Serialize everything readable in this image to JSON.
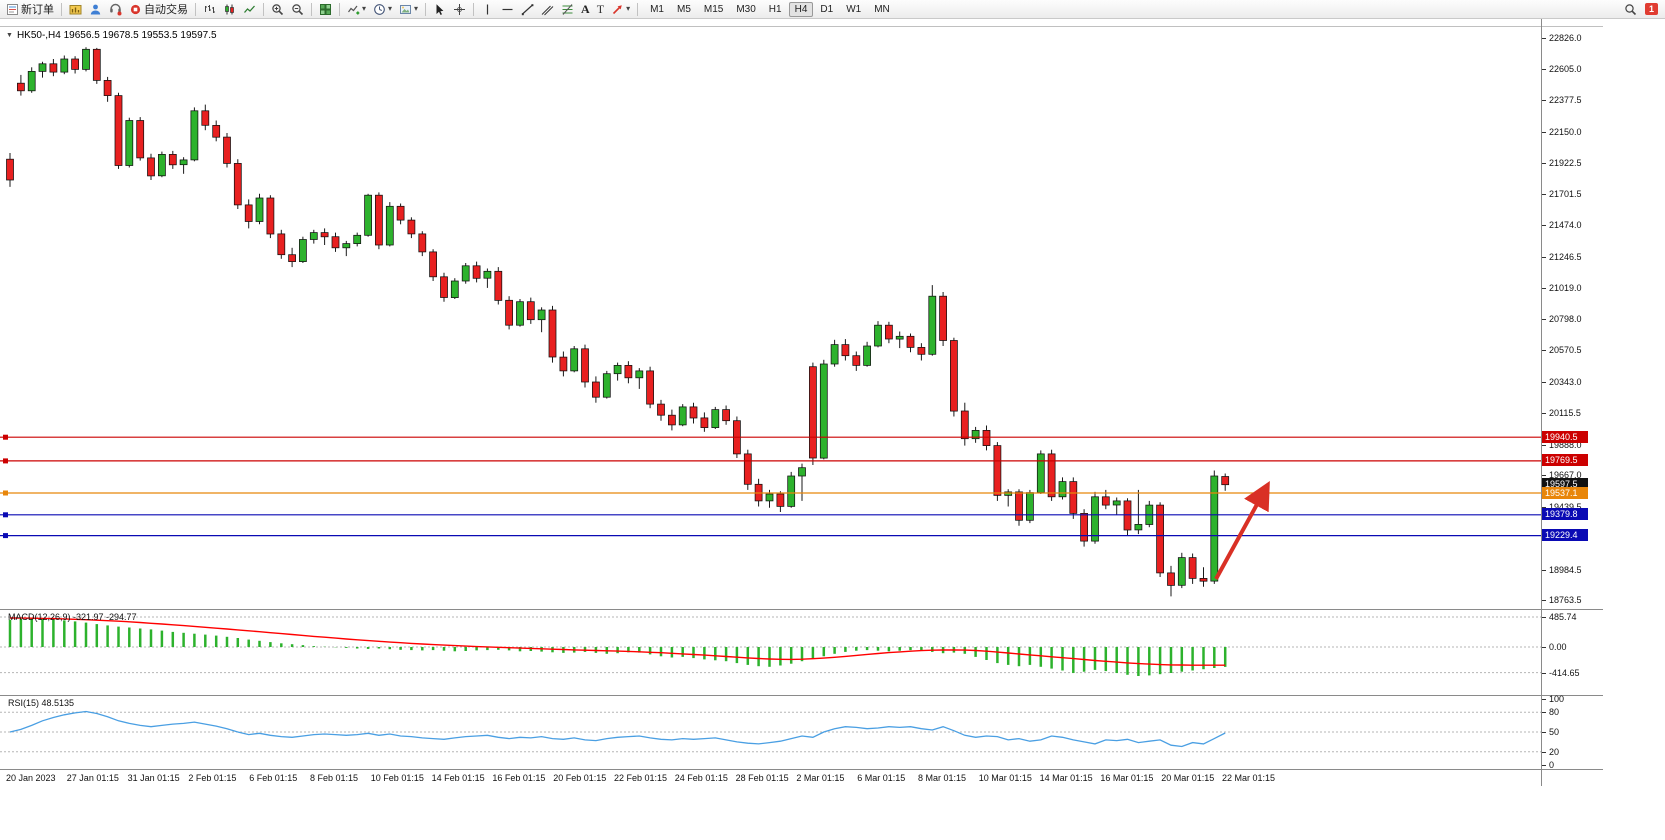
{
  "colors": {
    "bull": "#2db22d",
    "bear": "#e82020",
    "wick": "#1a1a1a",
    "macd_hist": "#2db22d",
    "macd_signal": "#ff0000",
    "rsi_line": "#4a9fe3",
    "line_red": "#cc0000",
    "line_orange": "#e8860a",
    "line_blue": "#0a0ab4",
    "tag_black": "#111111",
    "arrow": "#d93025"
  },
  "icons": {
    "collapse": "▼",
    "caret": "▾"
  },
  "toolbar": {
    "new_order": "新订单",
    "autotrading": "自动交易",
    "text_tool": "A",
    "label_tool": "T",
    "timeframes": [
      "M1",
      "M5",
      "M15",
      "M30",
      "H1",
      "H4",
      "D1",
      "W1",
      "MN"
    ],
    "active_timeframe": "H4",
    "badge_count": "1"
  },
  "chart": {
    "title": "HK50-,H4 19656.5 19678.5 19553.5 19597.5",
    "axis_prices": [
      22826.0,
      22605.0,
      22377.5,
      22150.0,
      21922.5,
      21701.5,
      21474.0,
      21246.5,
      21019.0,
      20798.0,
      20570.5,
      20343.0,
      20115.5,
      19888.0,
      19667.0,
      19439.5,
      19212.0,
      18984.5,
      18763.5
    ],
    "hlines": [
      {
        "value": 19940.5,
        "color": "#cc0000"
      },
      {
        "value": 19769.5,
        "color": "#cc0000"
      },
      {
        "value": 19537.1,
        "color": "#e8860a"
      },
      {
        "value": 19379.8,
        "color": "#0a0ab4"
      },
      {
        "value": 19229.4,
        "color": "#0a0ab4"
      }
    ],
    "price_tags": [
      {
        "text": "19940.5",
        "value": 19940.5,
        "bg": "#cc0000"
      },
      {
        "text": "19769.5",
        "value": 19769.5,
        "bg": "#cc0000"
      },
      {
        "text": "19597.5",
        "value": 19597.5,
        "bg": "#111111"
      },
      {
        "text": "19537.1",
        "value": 19537.1,
        "bg": "#e8860a"
      },
      {
        "text": "19379.8",
        "value": 19379.8,
        "bg": "#0a0ab4"
      },
      {
        "text": "19229.4",
        "value": 19229.4,
        "bg": "#0a0ab4"
      }
    ],
    "time_labels": [
      "20 Jan 2023",
      "27 Jan 01:15",
      "31 Jan 01:15",
      "2 Feb 01:15",
      "6 Feb 01:15",
      "8 Feb 01:15",
      "10 Feb 01:15",
      "14 Feb 01:15",
      "16 Feb 01:15",
      "20 Feb 01:15",
      "22 Feb 01:15",
      "24 Feb 01:15",
      "28 Feb 01:15",
      "2 Mar 01:15",
      "6 Mar 01:15",
      "8 Mar 01:15",
      "10 Mar 01:15",
      "14 Mar 01:15",
      "16 Mar 01:15",
      "20 Mar 01:15",
      "22 Mar 01:15"
    ]
  },
  "macd": {
    "label": "MACD(12,26,9) -321.97 -294.77",
    "axis": [
      {
        "text": "485.74",
        "value": 485.74
      },
      {
        "text": "0.00",
        "value": 0
      },
      {
        "text": "-414.65",
        "value": -414.65
      }
    ]
  },
  "rsi": {
    "label": "RSI(15) 48.5135",
    "axis": [
      {
        "text": "100",
        "value": 100
      },
      {
        "text": "80",
        "value": 80
      },
      {
        "text": "50",
        "value": 50
      },
      {
        "text": "20",
        "value": 20
      },
      {
        "text": "0",
        "value": 0
      }
    ],
    "levels": [
      80,
      50,
      20
    ]
  },
  "annotations": [
    {
      "type": "arrow-up",
      "color": "#d93025"
    }
  ],
  "chart_data": {
    "type": "candlestick",
    "symbol": "HK50-",
    "timeframe": "H4",
    "current_ohlc": {
      "open": 19656.5,
      "high": 19678.5,
      "low": 19553.5,
      "close": 19597.5
    },
    "y_range": [
      18706,
      22906
    ],
    "candles": [
      [
        21950,
        21995,
        21750,
        21800
      ],
      [
        22500,
        22560,
        22410,
        22445
      ],
      [
        22445,
        22615,
        22430,
        22585
      ],
      [
        22585,
        22655,
        22540,
        22640
      ],
      [
        22640,
        22675,
        22550,
        22580
      ],
      [
        22580,
        22700,
        22565,
        22675
      ],
      [
        22675,
        22695,
        22570,
        22600
      ],
      [
        22600,
        22760,
        22585,
        22745
      ],
      [
        22745,
        22755,
        22495,
        22520
      ],
      [
        22520,
        22545,
        22365,
        22410
      ],
      [
        22410,
        22430,
        21880,
        21905
      ],
      [
        21905,
        22250,
        21890,
        22230
      ],
      [
        22230,
        22255,
        21940,
        21960
      ],
      [
        21960,
        21990,
        21800,
        21830
      ],
      [
        21830,
        22005,
        21820,
        21985
      ],
      [
        21985,
        22010,
        21880,
        21910
      ],
      [
        21910,
        21965,
        21845,
        21945
      ],
      [
        21945,
        22325,
        21935,
        22300
      ],
      [
        22300,
        22345,
        22160,
        22195
      ],
      [
        22195,
        22230,
        22080,
        22110
      ],
      [
        22110,
        22140,
        21890,
        21920
      ],
      [
        21920,
        21950,
        21590,
        21620
      ],
      [
        21620,
        21660,
        21450,
        21500
      ],
      [
        21500,
        21700,
        21480,
        21670
      ],
      [
        21670,
        21690,
        21380,
        21410
      ],
      [
        21410,
        21440,
        21230,
        21260
      ],
      [
        21260,
        21310,
        21170,
        21210
      ],
      [
        21210,
        21390,
        21200,
        21370
      ],
      [
        21370,
        21440,
        21340,
        21420
      ],
      [
        21420,
        21450,
        21330,
        21390
      ],
      [
        21390,
        21420,
        21280,
        21310
      ],
      [
        21310,
        21360,
        21250,
        21340
      ],
      [
        21340,
        21420,
        21320,
        21400
      ],
      [
        21400,
        21700,
        21390,
        21690
      ],
      [
        21690,
        21710,
        21300,
        21330
      ],
      [
        21330,
        21640,
        21320,
        21610
      ],
      [
        21610,
        21630,
        21480,
        21510
      ],
      [
        21510,
        21530,
        21380,
        21410
      ],
      [
        21410,
        21430,
        21250,
        21280
      ],
      [
        21280,
        21300,
        21070,
        21100
      ],
      [
        21100,
        21130,
        20920,
        20950
      ],
      [
        20950,
        21090,
        20940,
        21070
      ],
      [
        21070,
        21200,
        21050,
        21180
      ],
      [
        21180,
        21210,
        21060,
        21090
      ],
      [
        21090,
        21160,
        21020,
        21140
      ],
      [
        21140,
        21170,
        20900,
        20930
      ],
      [
        20930,
        20960,
        20720,
        20750
      ],
      [
        20750,
        20940,
        20740,
        20920
      ],
      [
        20920,
        20950,
        20760,
        20790
      ],
      [
        20790,
        20880,
        20700,
        20860
      ],
      [
        20860,
        20890,
        20480,
        20520
      ],
      [
        20520,
        20560,
        20380,
        20420
      ],
      [
        20420,
        20600,
        20410,
        20580
      ],
      [
        20580,
        20610,
        20300,
        20340
      ],
      [
        20340,
        20380,
        20190,
        20230
      ],
      [
        20230,
        20420,
        20220,
        20400
      ],
      [
        20400,
        20480,
        20350,
        20460
      ],
      [
        20460,
        20490,
        20330,
        20370
      ],
      [
        20370,
        20440,
        20290,
        20420
      ],
      [
        20420,
        20450,
        20150,
        20180
      ],
      [
        20180,
        20210,
        20060,
        20100
      ],
      [
        20100,
        20140,
        19990,
        20030
      ],
      [
        20030,
        20180,
        20020,
        20160
      ],
      [
        20160,
        20190,
        20040,
        20080
      ],
      [
        20080,
        20120,
        19980,
        20010
      ],
      [
        20010,
        20160,
        20000,
        20140
      ],
      [
        20140,
        20170,
        20030,
        20060
      ],
      [
        20060,
        20090,
        19790,
        19820
      ],
      [
        19820,
        19850,
        19560,
        19600
      ],
      [
        19600,
        19640,
        19440,
        19480
      ],
      [
        19480,
        19560,
        19430,
        19530
      ],
      [
        19530,
        19550,
        19400,
        19440
      ],
      [
        19440,
        19690,
        19430,
        19660
      ],
      [
        19660,
        19750,
        19480,
        19720
      ],
      [
        20450,
        20480,
        19740,
        19790
      ],
      [
        19790,
        20500,
        19780,
        20470
      ],
      [
        20470,
        20645,
        20450,
        20610
      ],
      [
        20610,
        20650,
        20495,
        20530
      ],
      [
        20530,
        20560,
        20420,
        20460
      ],
      [
        20460,
        20630,
        20450,
        20600
      ],
      [
        20600,
        20780,
        20590,
        20750
      ],
      [
        20750,
        20775,
        20620,
        20650
      ],
      [
        20650,
        20705,
        20585,
        20670
      ],
      [
        20670,
        20690,
        20555,
        20590
      ],
      [
        20590,
        20620,
        20495,
        20540
      ],
      [
        20540,
        21040,
        20530,
        20960
      ],
      [
        20960,
        20990,
        20600,
        20640
      ],
      [
        20640,
        20660,
        20090,
        20130
      ],
      [
        20130,
        20190,
        19880,
        19930
      ],
      [
        19930,
        20015,
        19900,
        19990
      ],
      [
        19990,
        20025,
        19845,
        19880
      ],
      [
        19880,
        19905,
        19480,
        19520
      ],
      [
        19520,
        19565,
        19440,
        19545
      ],
      [
        19545,
        19565,
        19300,
        19340
      ],
      [
        19340,
        19560,
        19320,
        19540
      ],
      [
        19540,
        19845,
        19530,
        19820
      ],
      [
        19820,
        19850,
        19480,
        19510
      ],
      [
        19510,
        19650,
        19490,
        19620
      ],
      [
        19620,
        19650,
        19350,
        19390
      ],
      [
        19390,
        19420,
        19150,
        19190
      ],
      [
        19190,
        19545,
        19170,
        19510
      ],
      [
        19510,
        19560,
        19420,
        19450
      ],
      [
        19450,
        19505,
        19380,
        19480
      ],
      [
        19480,
        19500,
        19230,
        19270
      ],
      [
        19270,
        19560,
        19240,
        19310
      ],
      [
        19310,
        19480,
        19290,
        19450
      ],
      [
        19450,
        19470,
        18930,
        18960
      ],
      [
        18960,
        19010,
        18790,
        18870
      ],
      [
        18870,
        19105,
        18850,
        19070
      ],
      [
        19070,
        19100,
        18880,
        18920
      ],
      [
        18920,
        19000,
        18860,
        18900
      ],
      [
        18900,
        19700,
        18880,
        19660
      ],
      [
        19656.5,
        19678.5,
        19553.5,
        19597.5
      ]
    ],
    "macd_histogram": [
      440,
      455,
      460,
      455,
      445,
      430,
      415,
      395,
      370,
      350,
      330,
      315,
      300,
      285,
      265,
      245,
      230,
      215,
      200,
      185,
      165,
      145,
      120,
      100,
      80,
      60,
      45,
      30,
      15,
      5,
      -5,
      -15,
      -25,
      -30,
      -25,
      -35,
      -45,
      -50,
      -55,
      -50,
      -60,
      -70,
      -65,
      -55,
      -50,
      -45,
      -55,
      -70,
      -65,
      -75,
      -85,
      -95,
      -90,
      -80,
      -95,
      -110,
      -100,
      -85,
      -90,
      -120,
      -150,
      -170,
      -160,
      -180,
      -200,
      -215,
      -230,
      -260,
      -290,
      -310,
      -320,
      -300,
      -270,
      -230,
      -190,
      -150,
      -110,
      -80,
      -60,
      -50,
      -60,
      -70,
      -60,
      -50,
      -60,
      -80,
      -100,
      -90,
      -110,
      -160,
      -210,
      -260,
      -290,
      -310,
      -290,
      -320,
      -350,
      -380,
      -420,
      -400,
      -370,
      -390,
      -420,
      -450,
      -470,
      -460,
      -440,
      -420,
      -400,
      -380,
      -360,
      -340,
      -322
    ],
    "macd_signal": [
      470,
      468,
      466,
      463,
      459,
      454,
      448,
      441,
      434,
      426,
      417,
      407,
      396,
      384,
      372,
      359,
      346,
      333,
      319,
      305,
      291,
      277,
      262,
      247,
      232,
      217,
      202,
      187,
      172,
      158,
      144,
      130,
      117,
      104,
      92,
      80,
      69,
      58,
      48,
      39,
      30,
      22,
      14,
      7,
      1,
      -5,
      -11,
      -17,
      -23,
      -29,
      -35,
      -41,
      -47,
      -52,
      -57,
      -62,
      -67,
      -72,
      -78,
      -85,
      -93,
      -102,
      -111,
      -121,
      -131,
      -142,
      -153,
      -165,
      -176,
      -186,
      -194,
      -199,
      -200,
      -197,
      -190,
      -180,
      -167,
      -152,
      -136,
      -120,
      -105,
      -91,
      -79,
      -68,
      -59,
      -52,
      -48,
      -47,
      -50,
      -57,
      -68,
      -82,
      -97,
      -113,
      -128,
      -143,
      -158,
      -173,
      -188,
      -203,
      -218,
      -232,
      -245,
      -257,
      -268,
      -277,
      -284,
      -289,
      -292,
      -294,
      -295,
      -295,
      -295
    ],
    "rsi_values": [
      50,
      54,
      60,
      67,
      72,
      76,
      79,
      81,
      78,
      73,
      67,
      63,
      60,
      58,
      60,
      62,
      63,
      65,
      62,
      59,
      55,
      50,
      46,
      48,
      45,
      43,
      42,
      44,
      46,
      47,
      46,
      45,
      46,
      48,
      45,
      47,
      44,
      43,
      41,
      40,
      39,
      41,
      43,
      44,
      45,
      42,
      40,
      42,
      41,
      43,
      40,
      39,
      41,
      38,
      37,
      40,
      42,
      43,
      44,
      41,
      39,
      38,
      40,
      39,
      40,
      41,
      38,
      35,
      33,
      32,
      34,
      36,
      40,
      44,
      42,
      50,
      55,
      58,
      57,
      55,
      56,
      58,
      57,
      58,
      55,
      53,
      58,
      52,
      45,
      42,
      44,
      43,
      38,
      40,
      36,
      38,
      44,
      42,
      38,
      35,
      32,
      38,
      37,
      39,
      34,
      36,
      38,
      30,
      28,
      34,
      32,
      40,
      48.5
    ]
  }
}
